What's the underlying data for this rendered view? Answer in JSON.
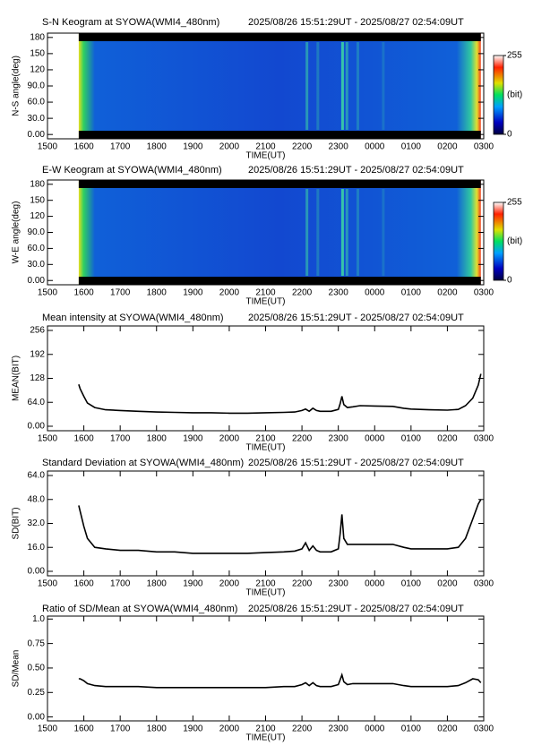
{
  "chart_data": [
    {
      "type": "keogram",
      "title": "S-N Keogram at SYOWA(WMI4_480nm)",
      "subtitle": "2025/08/26 15:51:29UT - 2025/08/27 02:54:09UT",
      "x_label": "TIME(UT)",
      "y_label": "N-S angle(deg)",
      "xlim": [
        15,
        27
      ],
      "xticks": [
        {
          "value": 15,
          "label": "1500"
        },
        {
          "value": 16,
          "label": "1600"
        },
        {
          "value": 17,
          "label": "1700"
        },
        {
          "value": 18,
          "label": "1800"
        },
        {
          "value": 19,
          "label": "1900"
        },
        {
          "value": 20,
          "label": "2000"
        },
        {
          "value": 21,
          "label": "2100"
        },
        {
          "value": 22,
          "label": "2200"
        },
        {
          "value": 23,
          "label": "2300"
        },
        {
          "value": 24,
          "label": "0000"
        },
        {
          "value": 25,
          "label": "0100"
        },
        {
          "value": 26,
          "label": "0200"
        },
        {
          "value": 27,
          "label": "0300"
        }
      ],
      "ylim": [
        -8,
        188
      ],
      "yticks": [
        {
          "value": 0,
          "label": "0.00"
        },
        {
          "value": 30,
          "label": "30.0"
        },
        {
          "value": 60,
          "label": "60.0"
        },
        {
          "value": 90,
          "label": "90.0"
        },
        120,
        150,
        180
      ],
      "colorbar": {
        "ticks": [
          0,
          255
        ],
        "label": "(bit)"
      }
    },
    {
      "type": "keogram",
      "title": "E-W Keogram at SYOWA(WMI4_480nm)",
      "subtitle": "2025/08/26 15:51:29UT - 2025/08/27 02:54:09UT",
      "x_label": "TIME(UT)",
      "y_label": "W-E angle(deg)",
      "xlim": [
        15,
        27
      ],
      "xticks": [
        {
          "value": 15,
          "label": "1500"
        },
        {
          "value": 16,
          "label": "1600"
        },
        {
          "value": 17,
          "label": "1700"
        },
        {
          "value": 18,
          "label": "1800"
        },
        {
          "value": 19,
          "label": "1900"
        },
        {
          "value": 20,
          "label": "2000"
        },
        {
          "value": 21,
          "label": "2100"
        },
        {
          "value": 22,
          "label": "2200"
        },
        {
          "value": 23,
          "label": "2300"
        },
        {
          "value": 24,
          "label": "0000"
        },
        {
          "value": 25,
          "label": "0100"
        },
        {
          "value": 26,
          "label": "0200"
        },
        {
          "value": 27,
          "label": "0300"
        }
      ],
      "ylim": [
        -8,
        188
      ],
      "yticks": [
        {
          "value": 0,
          "label": "0.00"
        },
        {
          "value": 30,
          "label": "30.0"
        },
        {
          "value": 60,
          "label": "60.0"
        },
        {
          "value": 90,
          "label": "90.0"
        },
        120,
        150,
        180
      ],
      "colorbar": {
        "ticks": [
          0,
          255
        ],
        "label": "(bit)"
      }
    },
    {
      "type": "line",
      "title": "Mean intensity at SYOWA(WMI4_480nm)",
      "subtitle": "2025/08/26 15:51:29UT - 2025/08/27 02:54:09UT",
      "x_label": "TIME(UT)",
      "y_label": "MEAN(BIT)",
      "color": "#000000",
      "xlim": [
        15,
        27
      ],
      "xticks": [
        {
          "value": 15,
          "label": "1500"
        },
        {
          "value": 16,
          "label": "1600"
        },
        {
          "value": 17,
          "label": "1700"
        },
        {
          "value": 18,
          "label": "1800"
        },
        {
          "value": 19,
          "label": "1900"
        },
        {
          "value": 20,
          "label": "2000"
        },
        {
          "value": 21,
          "label": "2100"
        },
        {
          "value": 22,
          "label": "2200"
        },
        {
          "value": 23,
          "label": "2300"
        },
        {
          "value": 24,
          "label": "0000"
        },
        {
          "value": 25,
          "label": "0100"
        },
        {
          "value": 26,
          "label": "0200"
        },
        {
          "value": 27,
          "label": "0300"
        }
      ],
      "ylim": [
        -12,
        268
      ],
      "yticks": [
        {
          "value": 0,
          "label": "0.00"
        },
        {
          "value": 64,
          "label": "64.0"
        },
        128,
        192,
        256
      ],
      "x": [
        15.86,
        15.9,
        16.0,
        16.1,
        16.3,
        16.6,
        17.0,
        17.5,
        18.0,
        18.5,
        19.0,
        19.5,
        20.0,
        20.5,
        21.0,
        21.5,
        21.8,
        22.0,
        22.1,
        22.2,
        22.3,
        22.4,
        22.5,
        22.8,
        23.0,
        23.05,
        23.1,
        23.15,
        23.25,
        23.4,
        23.6,
        24.0,
        24.5,
        24.8,
        25.0,
        25.5,
        26.0,
        26.3,
        26.5,
        26.7,
        26.85,
        26.92
      ],
      "values": [
        112,
        100,
        80,
        62,
        50,
        44,
        42,
        40,
        38,
        37,
        36,
        36,
        35,
        35,
        36,
        37,
        38,
        42,
        46,
        40,
        48,
        42,
        40,
        40,
        45,
        60,
        80,
        58,
        50,
        52,
        55,
        54,
        53,
        48,
        46,
        44,
        43,
        45,
        55,
        75,
        110,
        140
      ]
    },
    {
      "type": "line",
      "title": "Standard Deviation at SYOWA(WMI4_480nm)",
      "subtitle": "2025/08/26 15:51:29UT - 2025/08/27 02:54:09UT",
      "x_label": "TIME(UT)",
      "y_label": "SD(BIT)",
      "color": "#000000",
      "xlim": [
        15,
        27
      ],
      "xticks": [
        {
          "value": 15,
          "label": "1500"
        },
        {
          "value": 16,
          "label": "1600"
        },
        {
          "value": 17,
          "label": "1700"
        },
        {
          "value": 18,
          "label": "1800"
        },
        {
          "value": 19,
          "label": "1900"
        },
        {
          "value": 20,
          "label": "2000"
        },
        {
          "value": 21,
          "label": "2100"
        },
        {
          "value": 22,
          "label": "2200"
        },
        {
          "value": 23,
          "label": "2300"
        },
        {
          "value": 24,
          "label": "0000"
        },
        {
          "value": 25,
          "label": "0100"
        },
        {
          "value": 26,
          "label": "0200"
        },
        {
          "value": 27,
          "label": "0300"
        }
      ],
      "ylim": [
        -3,
        67
      ],
      "yticks": [
        {
          "value": 0,
          "label": "0.00"
        },
        {
          "value": 16,
          "label": "16.0"
        },
        {
          "value": 32,
          "label": "32.0"
        },
        {
          "value": 48,
          "label": "48.0"
        },
        {
          "value": 64,
          "label": "64.0"
        }
      ],
      "x": [
        15.86,
        15.9,
        16.0,
        16.1,
        16.3,
        16.6,
        17.0,
        17.5,
        18.0,
        18.5,
        19.0,
        19.5,
        20.0,
        20.5,
        21.0,
        21.5,
        21.8,
        22.0,
        22.1,
        22.2,
        22.3,
        22.4,
        22.5,
        22.8,
        23.0,
        23.05,
        23.1,
        23.15,
        23.25,
        23.4,
        23.6,
        24.0,
        24.5,
        24.8,
        25.0,
        25.5,
        26.0,
        26.3,
        26.5,
        26.7,
        26.85,
        26.92
      ],
      "values": [
        44,
        40,
        30,
        22,
        16,
        15,
        14,
        14,
        13,
        13,
        12,
        12,
        12,
        12,
        12.5,
        13,
        13.5,
        15,
        19,
        14,
        17,
        14,
        13,
        13,
        15,
        25,
        38,
        22,
        18,
        18,
        18,
        18,
        18,
        16,
        15,
        15,
        15,
        16,
        22,
        35,
        45,
        48
      ]
    },
    {
      "type": "line",
      "title": "Ratio of SD/Mean at SYOWA(WMI4_480nm)",
      "subtitle": "2025/08/26 15:51:29UT - 2025/08/27 02:54:09UT",
      "x_label": "TIME(UT)",
      "y_label": "SD/Mean",
      "color": "#000000",
      "xlim": [
        15,
        27
      ],
      "xticks": [
        {
          "value": 15,
          "label": "1500"
        },
        {
          "value": 16,
          "label": "1600"
        },
        {
          "value": 17,
          "label": "1700"
        },
        {
          "value": 18,
          "label": "1800"
        },
        {
          "value": 19,
          "label": "1900"
        },
        {
          "value": 20,
          "label": "2000"
        },
        {
          "value": 21,
          "label": "2100"
        },
        {
          "value": 22,
          "label": "2200"
        },
        {
          "value": 23,
          "label": "2300"
        },
        {
          "value": 24,
          "label": "0000"
        },
        {
          "value": 25,
          "label": "0100"
        },
        {
          "value": 26,
          "label": "0200"
        },
        {
          "value": 27,
          "label": "0300"
        }
      ],
      "ylim": [
        -0.04,
        1.03
      ],
      "yticks": [
        {
          "value": 0,
          "label": "0.00"
        },
        0.25,
        {
          "value": 0.5,
          "label": "0.50"
        },
        0.75,
        {
          "value": 1,
          "label": "1.0"
        }
      ],
      "x": [
        15.86,
        15.9,
        16.0,
        16.1,
        16.3,
        16.6,
        17.0,
        17.5,
        18.0,
        18.5,
        19.0,
        19.5,
        20.0,
        20.5,
        21.0,
        21.5,
        21.8,
        22.0,
        22.1,
        22.2,
        22.3,
        22.4,
        22.5,
        22.8,
        23.0,
        23.05,
        23.1,
        23.15,
        23.25,
        23.4,
        23.6,
        24.0,
        24.5,
        24.8,
        25.0,
        25.5,
        26.0,
        26.3,
        26.5,
        26.7,
        26.85,
        26.92
      ],
      "values": [
        0.39,
        0.39,
        0.37,
        0.34,
        0.32,
        0.31,
        0.31,
        0.31,
        0.3,
        0.3,
        0.3,
        0.3,
        0.3,
        0.3,
        0.3,
        0.31,
        0.31,
        0.33,
        0.35,
        0.32,
        0.35,
        0.32,
        0.31,
        0.31,
        0.33,
        0.38,
        0.43,
        0.36,
        0.33,
        0.34,
        0.34,
        0.34,
        0.34,
        0.32,
        0.31,
        0.31,
        0.31,
        0.32,
        0.35,
        0.39,
        0.38,
        0.35
      ]
    }
  ]
}
